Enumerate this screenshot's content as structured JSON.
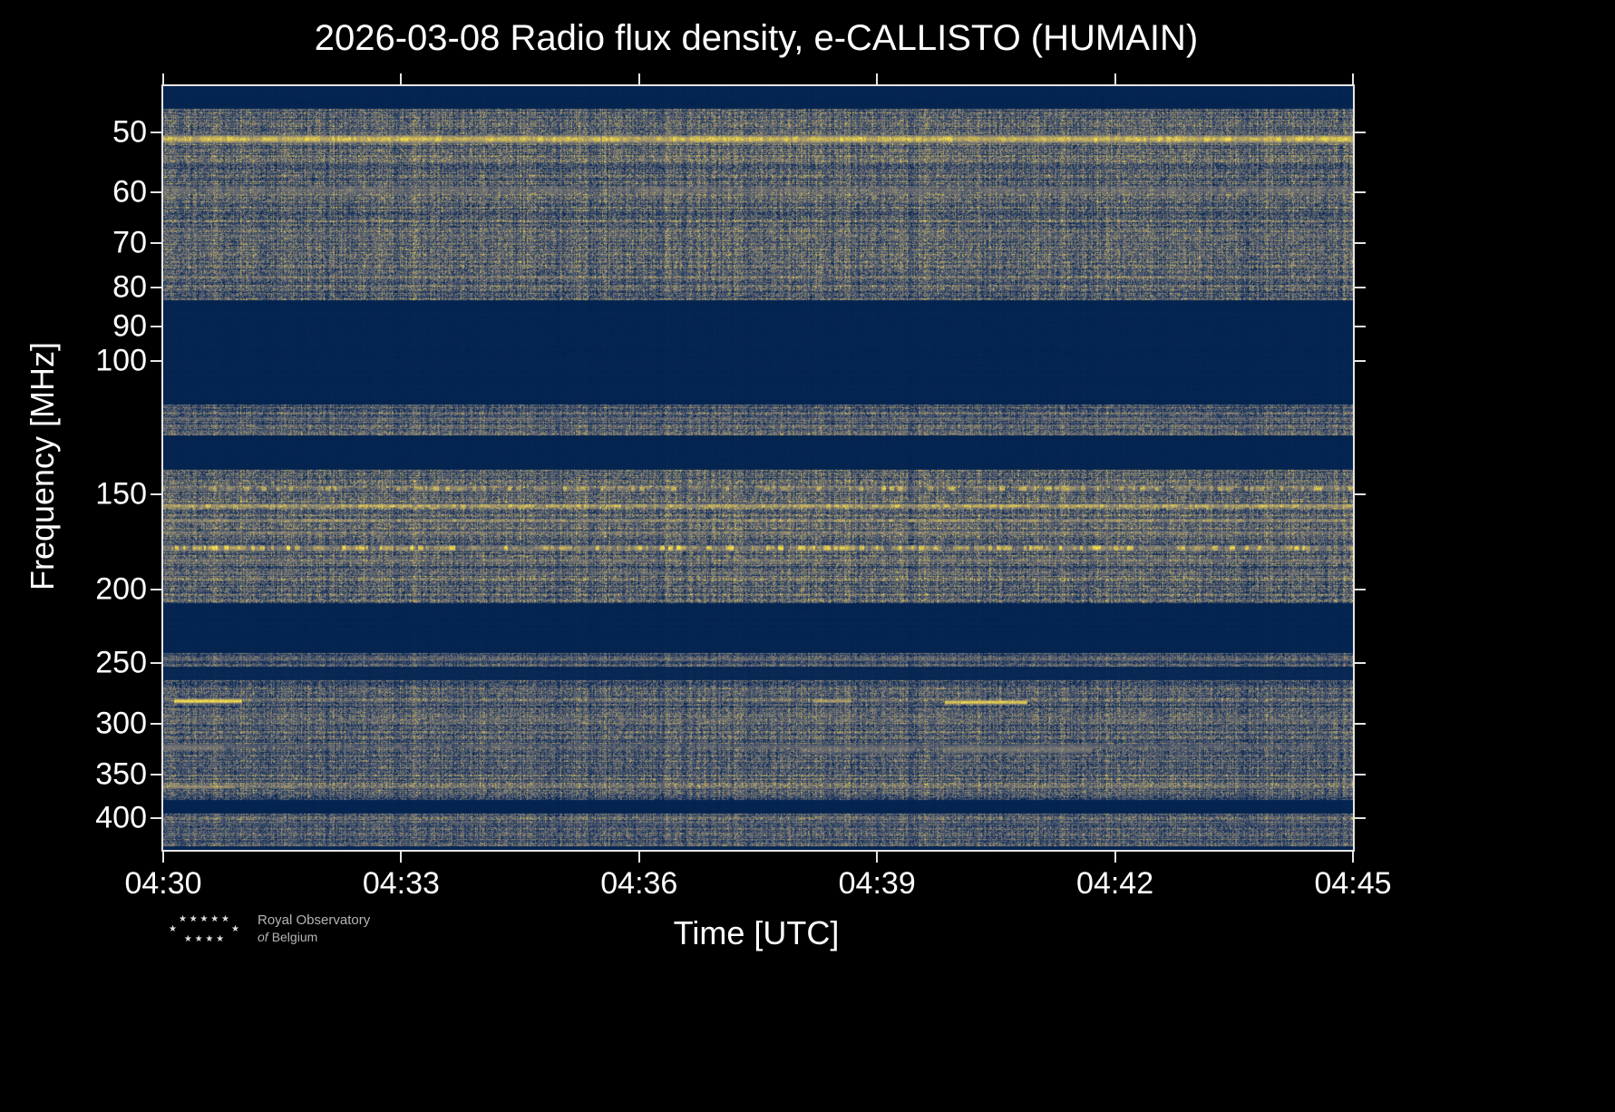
{
  "colors": {
    "background": "#000000",
    "axis": "#e6e6e6",
    "text": "#ffffff"
  },
  "figure": {
    "logo": {
      "line1": "Royal Observatory",
      "line2_italic": "of",
      "line2_rest": "Belgium",
      "stars_top": "★ ★ ★ ★ ★",
      "stars_mid_left": "★",
      "stars_mid_right": "★",
      "stars_bottom": "★ ★ ★ ★"
    }
  },
  "chart_data": {
    "type": "heatmap",
    "title": "2026-03-08 Radio flux density, e-CALLISTO (HUMAIN)",
    "xlabel": "Time [UTC]",
    "ylabel": "Frequency [MHz]",
    "date": "2026-03-08",
    "instrument": "e-CALLISTO",
    "station": "HUMAIN",
    "x_ticks": [
      "04:30",
      "04:33",
      "04:36",
      "04:39",
      "04:42",
      "04:45"
    ],
    "y_ticks": [
      50,
      60,
      70,
      80,
      90,
      100,
      150,
      200,
      250,
      300,
      350,
      400
    ],
    "y_scale": "log",
    "y_axis_inverted": true,
    "freq_range": [
      43.5,
      440
    ],
    "time_start_utc": "04:30",
    "time_end_utc": "04:45",
    "grid": false,
    "legend": "none",
    "colormap": [
      [
        0.0,
        "#00204d"
      ],
      [
        0.2,
        "#1f3a63"
      ],
      [
        0.4,
        "#575d6d"
      ],
      [
        0.6,
        "#7b7a77"
      ],
      [
        0.8,
        "#b9a660"
      ],
      [
        1.0,
        "#ffea46"
      ]
    ],
    "bands": [
      {
        "f_lo": 43.5,
        "f_hi": 46.5,
        "base": 0.03,
        "noise": 0.02
      },
      {
        "f_lo": 46.5,
        "f_hi": 83,
        "base": 0.34,
        "noise": 0.5
      },
      {
        "f_lo": 83,
        "f_hi": 114,
        "base": 0.03,
        "noise": 0.02
      },
      {
        "f_lo": 114,
        "f_hi": 125,
        "base": 0.33,
        "noise": 0.46
      },
      {
        "f_lo": 125,
        "f_hi": 139,
        "base": 0.03,
        "noise": 0.02
      },
      {
        "f_lo": 139,
        "f_hi": 208,
        "base": 0.36,
        "noise": 0.5
      },
      {
        "f_lo": 208,
        "f_hi": 242,
        "base": 0.03,
        "noise": 0.02
      },
      {
        "f_lo": 242,
        "f_hi": 252,
        "base": 0.3,
        "noise": 0.42
      },
      {
        "f_lo": 252,
        "f_hi": 263,
        "base": 0.05,
        "noise": 0.04
      },
      {
        "f_lo": 263,
        "f_hi": 378,
        "base": 0.33,
        "noise": 0.48
      },
      {
        "f_lo": 378,
        "f_hi": 394,
        "base": 0.03,
        "noise": 0.02
      },
      {
        "f_lo": 394,
        "f_hi": 434,
        "base": 0.32,
        "noise": 0.46
      },
      {
        "f_lo": 434,
        "f_hi": 440,
        "base": 0.03,
        "noise": 0.02
      }
    ],
    "lines": [
      {
        "f": 51,
        "w": 1.3,
        "i": 0.95,
        "dash": 0.2
      },
      {
        "f": 59.5,
        "w": 1.6,
        "i": 0.6,
        "dash": 0.45
      },
      {
        "f": 68.5,
        "w": 0.9,
        "i": 0.46,
        "dash": 0.5
      },
      {
        "f": 77.5,
        "w": 0.9,
        "i": 0.5,
        "dash": 0.5
      },
      {
        "f": 119,
        "w": 1.4,
        "i": 0.55,
        "dash": 0.55
      },
      {
        "f": 147,
        "w": 3,
        "i": 0.9,
        "dash": 0.75
      },
      {
        "f": 155,
        "w": 2.2,
        "i": 0.92,
        "dash": 0.3
      },
      {
        "f": 162,
        "w": 2,
        "i": 0.8,
        "dash": 0.4
      },
      {
        "f": 168,
        "w": 1.6,
        "i": 0.72,
        "dash": 0.5
      },
      {
        "f": 176,
        "w": 3.4,
        "i": 1.0,
        "dash": 0.6
      },
      {
        "f": 183,
        "w": 2.4,
        "i": 0.62,
        "dash": 0.5
      },
      {
        "f": 190,
        "w": 1.6,
        "i": 0.55,
        "dash": 0.55
      },
      {
        "f": 247,
        "w": 2.4,
        "i": 0.5,
        "dash": 0.5
      },
      {
        "f": 280,
        "w": 2.6,
        "i": 0.5,
        "dash": 0.55
      },
      {
        "f": 297,
        "w": 2.2,
        "i": 0.52,
        "dash": 0.55
      },
      {
        "f": 321,
        "w": 5.5,
        "i": 0.5,
        "dash": 0.5
      },
      {
        "f": 363,
        "w": 3,
        "i": 0.58,
        "dash": 0.5
      },
      {
        "f": 405,
        "w": 3,
        "i": 0.45,
        "dash": 0.55
      }
    ],
    "blobs": [
      {
        "f": 280,
        "fw": 4,
        "t0": 0.009,
        "t1": 0.066,
        "i": 1.0
      },
      {
        "f": 280,
        "fw": 3.5,
        "t0": 0.546,
        "t1": 0.578,
        "i": 0.8
      },
      {
        "f": 281,
        "fw": 4,
        "t0": 0.657,
        "t1": 0.726,
        "i": 0.95
      },
      {
        "f": 322,
        "fw": 8,
        "t0": 0.0,
        "t1": 0.051,
        "i": 0.55
      },
      {
        "f": 324,
        "fw": 9,
        "t0": 0.535,
        "t1": 0.63,
        "i": 0.5
      },
      {
        "f": 324,
        "fw": 9,
        "t0": 0.655,
        "t1": 0.78,
        "i": 0.55
      },
      {
        "f": 363,
        "fw": 4,
        "t0": 0.0,
        "t1": 0.06,
        "i": 0.72
      }
    ]
  }
}
